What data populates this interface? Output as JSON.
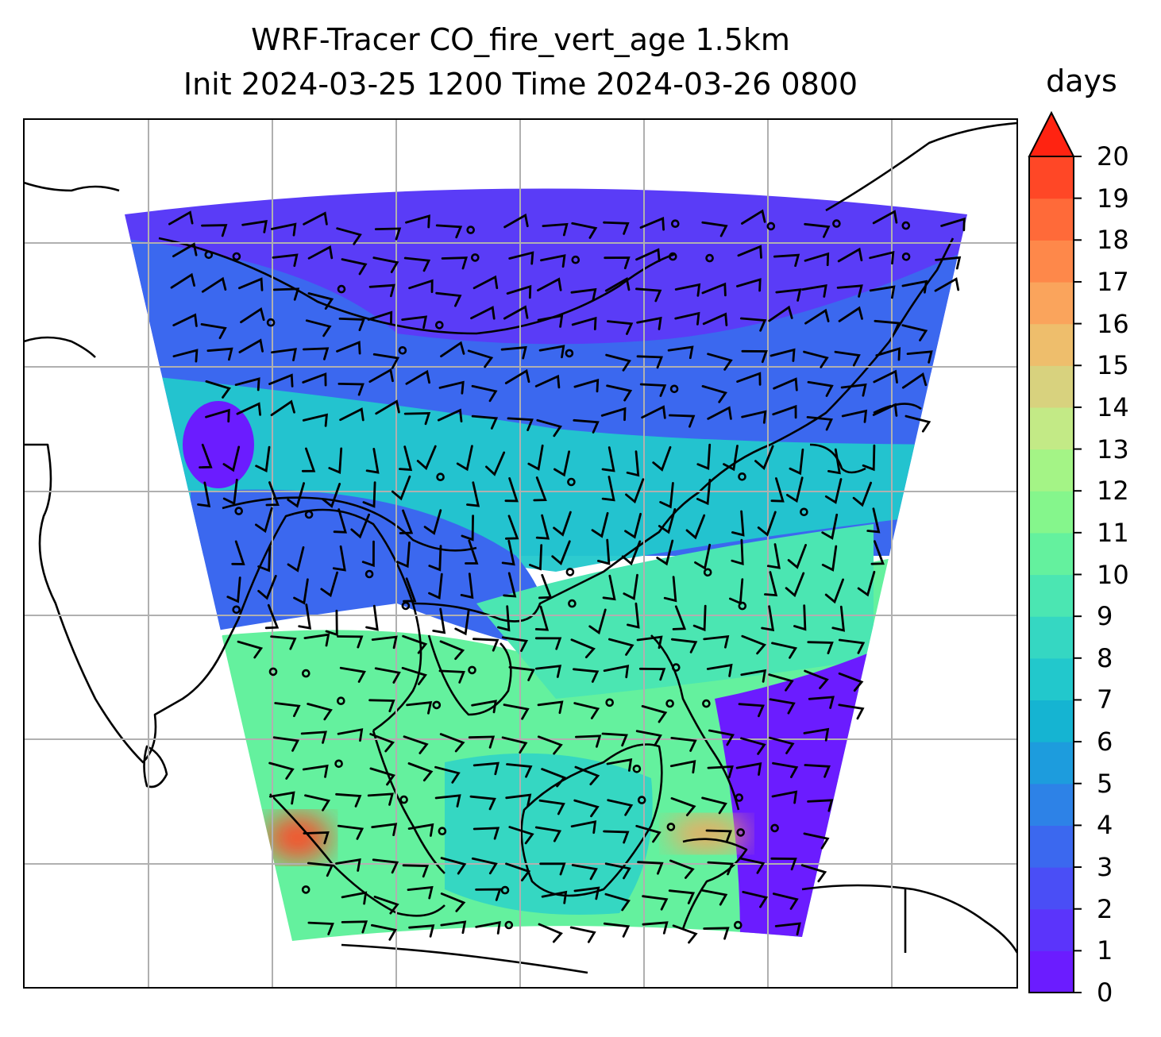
{
  "title": {
    "line1": "WRF-Tracer CO_fire_vert_age 1.5km",
    "line2": "Init 2024-03-25 1200 Time 2024-03-26 0800"
  },
  "colorbar": {
    "units": "days",
    "ticks": [
      "0",
      "1",
      "2",
      "3",
      "4",
      "5",
      "6",
      "7",
      "8",
      "9",
      "10",
      "11",
      "12",
      "13",
      "14",
      "15",
      "16",
      "17",
      "18",
      "19",
      "20"
    ],
    "extend": "max",
    "colors": [
      "#6b1cff",
      "#5b34fb",
      "#4a4ef6",
      "#3b68ef",
      "#2d82e7",
      "#1d9cdd",
      "#15b4d2",
      "#22c8cc",
      "#35d7c2",
      "#4be6b2",
      "#64f19e",
      "#85f68c",
      "#a4f486",
      "#c3ea86",
      "#d8d27e",
      "#eebe6c",
      "#faa45c",
      "#fe884a",
      "#ff6a39",
      "#ff4726",
      "#ff2311"
    ]
  },
  "map": {
    "gridlines": true,
    "coastline_color": "#000000",
    "barb_color": "#000000",
    "domain_colors": {
      "north_band": "#5a3cf7",
      "mid_band": "#1d9cdd",
      "central": "#22c8cc",
      "south": "#64f19e",
      "hotspot": "#ff4726"
    }
  }
}
